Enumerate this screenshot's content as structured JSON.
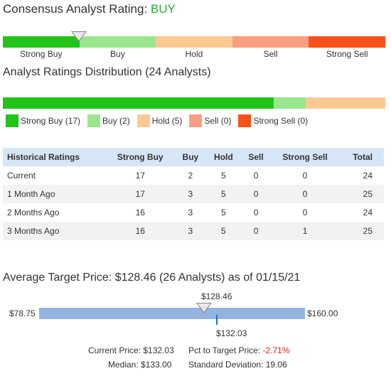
{
  "consensus": {
    "label": "Consensus Analyst Rating:",
    "value": "BUY"
  },
  "scale": {
    "segments": [
      {
        "label": "Strong Buy",
        "color": "#22c41a"
      },
      {
        "label": "Buy",
        "color": "#99e68f"
      },
      {
        "label": "Hold",
        "color": "#fcc995"
      },
      {
        "label": "Sell",
        "color": "#fa9e81"
      },
      {
        "label": "Strong Sell",
        "color": "#fa501c"
      }
    ]
  },
  "distribution": {
    "title": "Analyst Ratings Distribution (24 Analysts)",
    "legend": [
      {
        "label": "Strong Buy (17)",
        "count": 17,
        "color": "#22c41a"
      },
      {
        "label": "Buy (2)",
        "count": 2,
        "color": "#99e68f"
      },
      {
        "label": "Hold (5)",
        "count": 5,
        "color": "#fcc995"
      },
      {
        "label": "Sell (0)",
        "count": 0,
        "color": "#fa9e81"
      },
      {
        "label": "Strong Sell (0)",
        "count": 0,
        "color": "#fa501c"
      }
    ]
  },
  "historical": {
    "headers": [
      "Historical Ratings",
      "Strong Buy",
      "Buy",
      "Hold",
      "Sell",
      "Strong Sell",
      "Total"
    ],
    "rows": [
      [
        "Current",
        "17",
        "2",
        "5",
        "0",
        "0",
        "24"
      ],
      [
        "1 Month Ago",
        "17",
        "3",
        "5",
        "0",
        "0",
        "25"
      ],
      [
        "2 Months Ago",
        "16",
        "3",
        "5",
        "0",
        "0",
        "24"
      ],
      [
        "3 Months Ago",
        "16",
        "3",
        "5",
        "0",
        "1",
        "25"
      ]
    ]
  },
  "target": {
    "title": "Average Target Price: $128.46 (26 Analysts)   as of 01/15/21",
    "average_label": "$128.46",
    "low_label": "$78.75",
    "high_label": "$160.00",
    "current_label": "$132.03",
    "stats": {
      "current_price_label": "Current Price:",
      "current_price_value": "$132.03",
      "pct_label": "Pct to Target Price:",
      "pct_value": "-2.71%",
      "median_label": "Median:",
      "median_value": "$133.00",
      "stdev_label": "Standard Deviation:",
      "stdev_value": "19.06"
    }
  }
}
